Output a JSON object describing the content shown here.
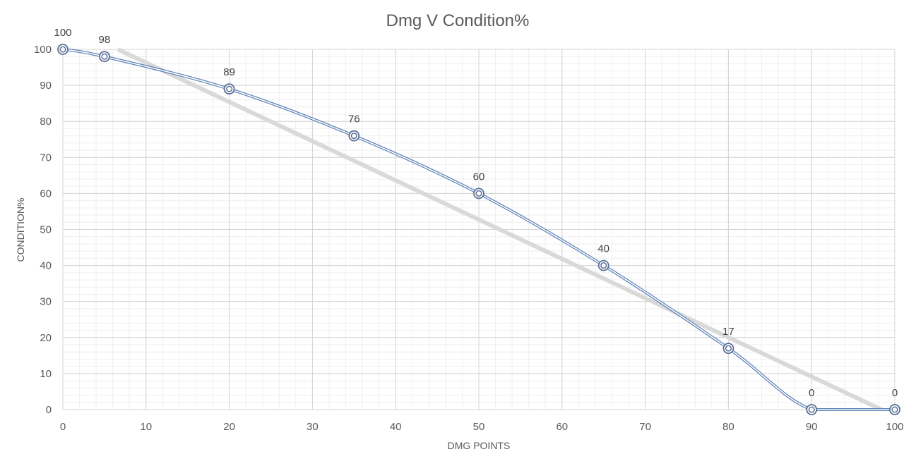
{
  "chart_data": {
    "type": "line",
    "title": "Dmg V Condition%",
    "xlabel": "DMG POINTS",
    "ylabel": "CONDITION%",
    "xlim": [
      0,
      100
    ],
    "ylim": [
      0,
      100
    ],
    "x_ticks": [
      0,
      10,
      20,
      30,
      40,
      50,
      60,
      70,
      80,
      90,
      100
    ],
    "y_ticks": [
      0,
      10,
      20,
      30,
      40,
      50,
      60,
      70,
      80,
      90,
      100
    ],
    "grid": "major and minor",
    "legend": "none",
    "series": [
      {
        "x": [
          0,
          5,
          20,
          35,
          50,
          65,
          80,
          90,
          100
        ],
        "y": [
          100,
          98,
          89,
          76,
          60,
          40,
          17,
          0,
          0
        ],
        "data_labels": [
          "100",
          "98",
          "89",
          "76",
          "60",
          "40",
          "17",
          "0",
          "0"
        ],
        "color": "#5b7fb5",
        "marker": "circle",
        "smooth": true
      }
    ],
    "trendline": {
      "type": "linear",
      "color": "#d9d9d9"
    }
  }
}
